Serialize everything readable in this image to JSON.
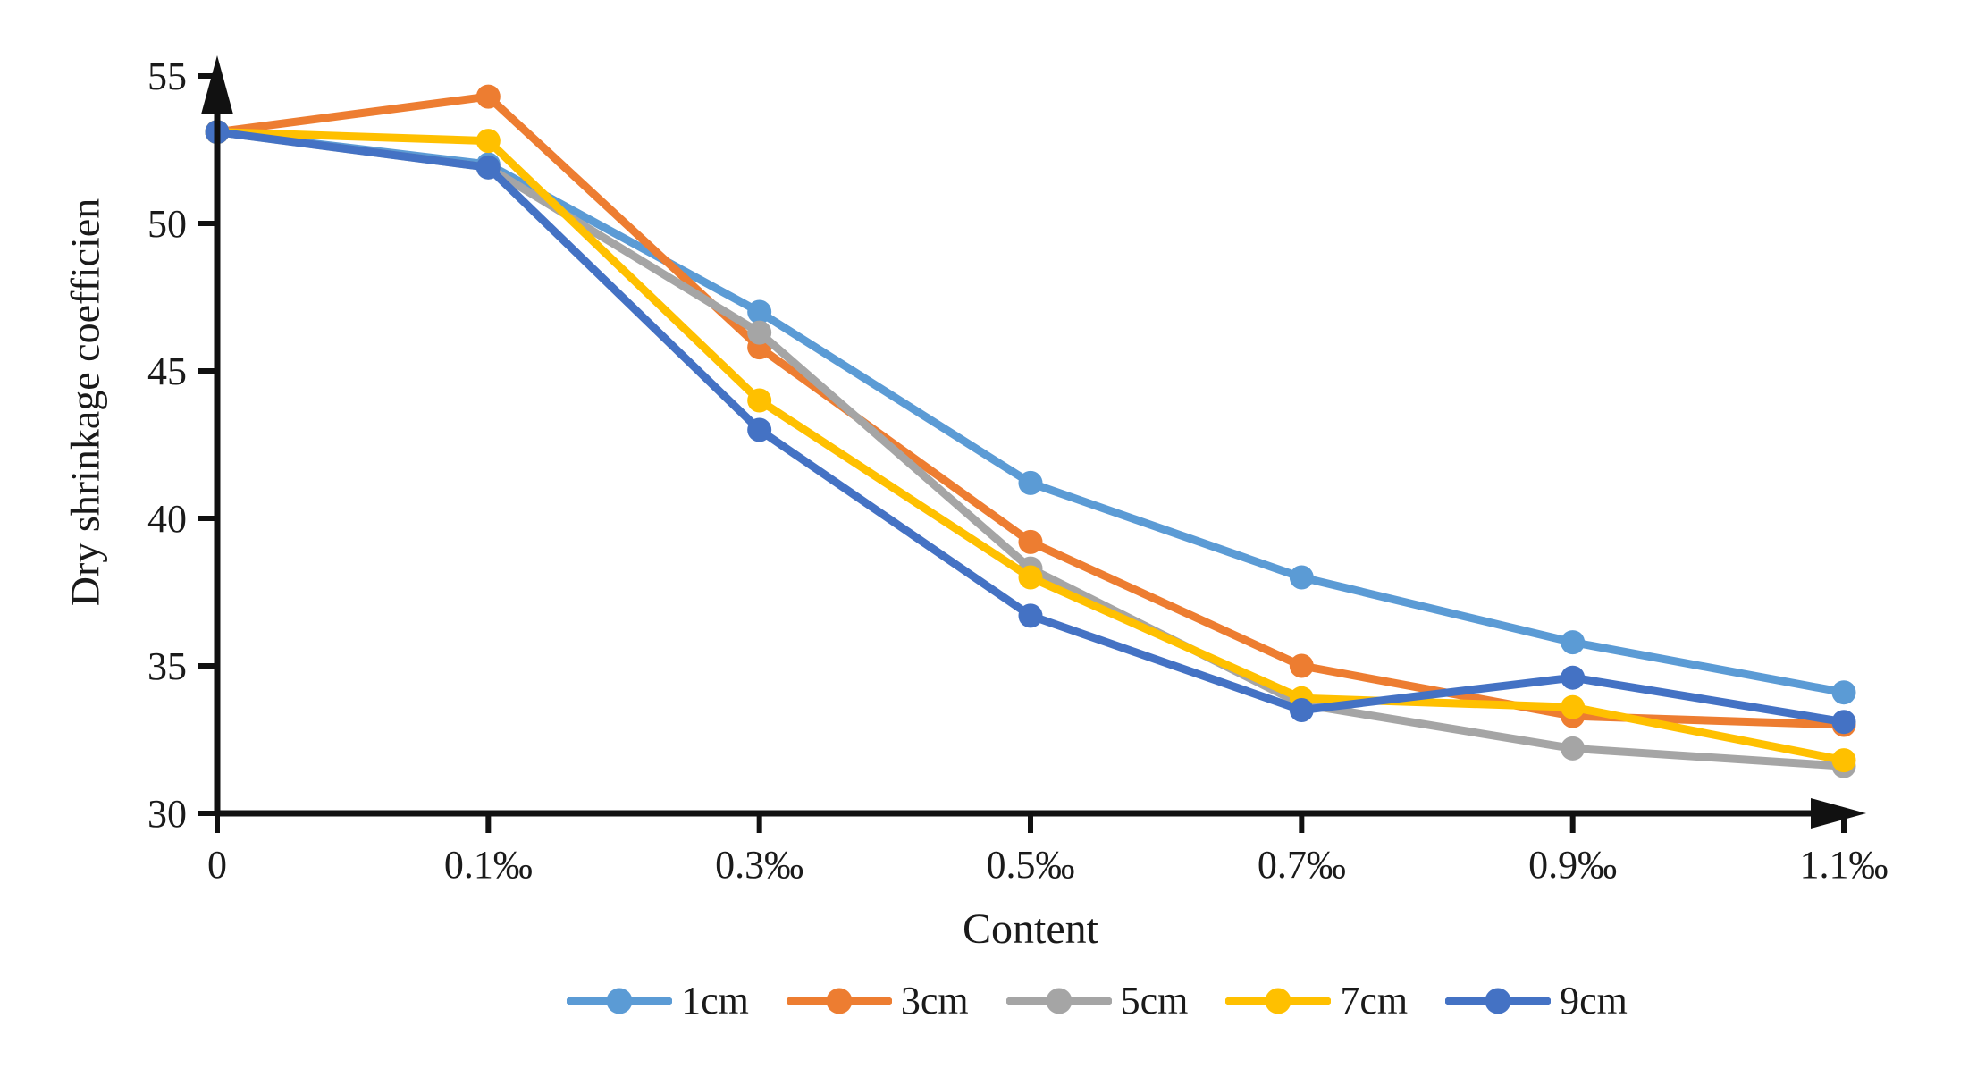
{
  "chart_data": {
    "type": "line",
    "title": "",
    "xlabel": "Content",
    "ylabel": "Dry shrinkage coefficien",
    "categories": [
      "0",
      "0.1‰",
      "0.3‰",
      "0.5‰",
      "0.7‰",
      "0.9‰",
      "1.1‰"
    ],
    "ylim": [
      30,
      55
    ],
    "ytick_step": 5,
    "ytick_labels": [
      "30",
      "35",
      "40",
      "45",
      "50",
      "55"
    ],
    "grid": false,
    "legend_position": "bottom",
    "axis_color": "#111111",
    "series": [
      {
        "name": "1cm",
        "color": "#5B9BD5",
        "values": [
          53.1,
          52.0,
          47.0,
          41.2,
          38.0,
          35.8,
          34.1
        ]
      },
      {
        "name": "3cm",
        "color": "#ED7D31",
        "values": [
          53.1,
          54.3,
          45.8,
          39.2,
          35.0,
          33.3,
          33.0
        ]
      },
      {
        "name": "5cm",
        "color": "#A5A5A5",
        "values": [
          53.1,
          51.9,
          46.3,
          38.3,
          33.7,
          32.2,
          31.6
        ]
      },
      {
        "name": "7cm",
        "color": "#FFC000",
        "values": [
          53.1,
          52.8,
          44.0,
          38.0,
          33.9,
          33.6,
          31.8
        ]
      },
      {
        "name": "9cm",
        "color": "#4472C4",
        "values": [
          53.1,
          51.9,
          43.0,
          36.7,
          33.5,
          34.6,
          33.1
        ]
      }
    ]
  }
}
